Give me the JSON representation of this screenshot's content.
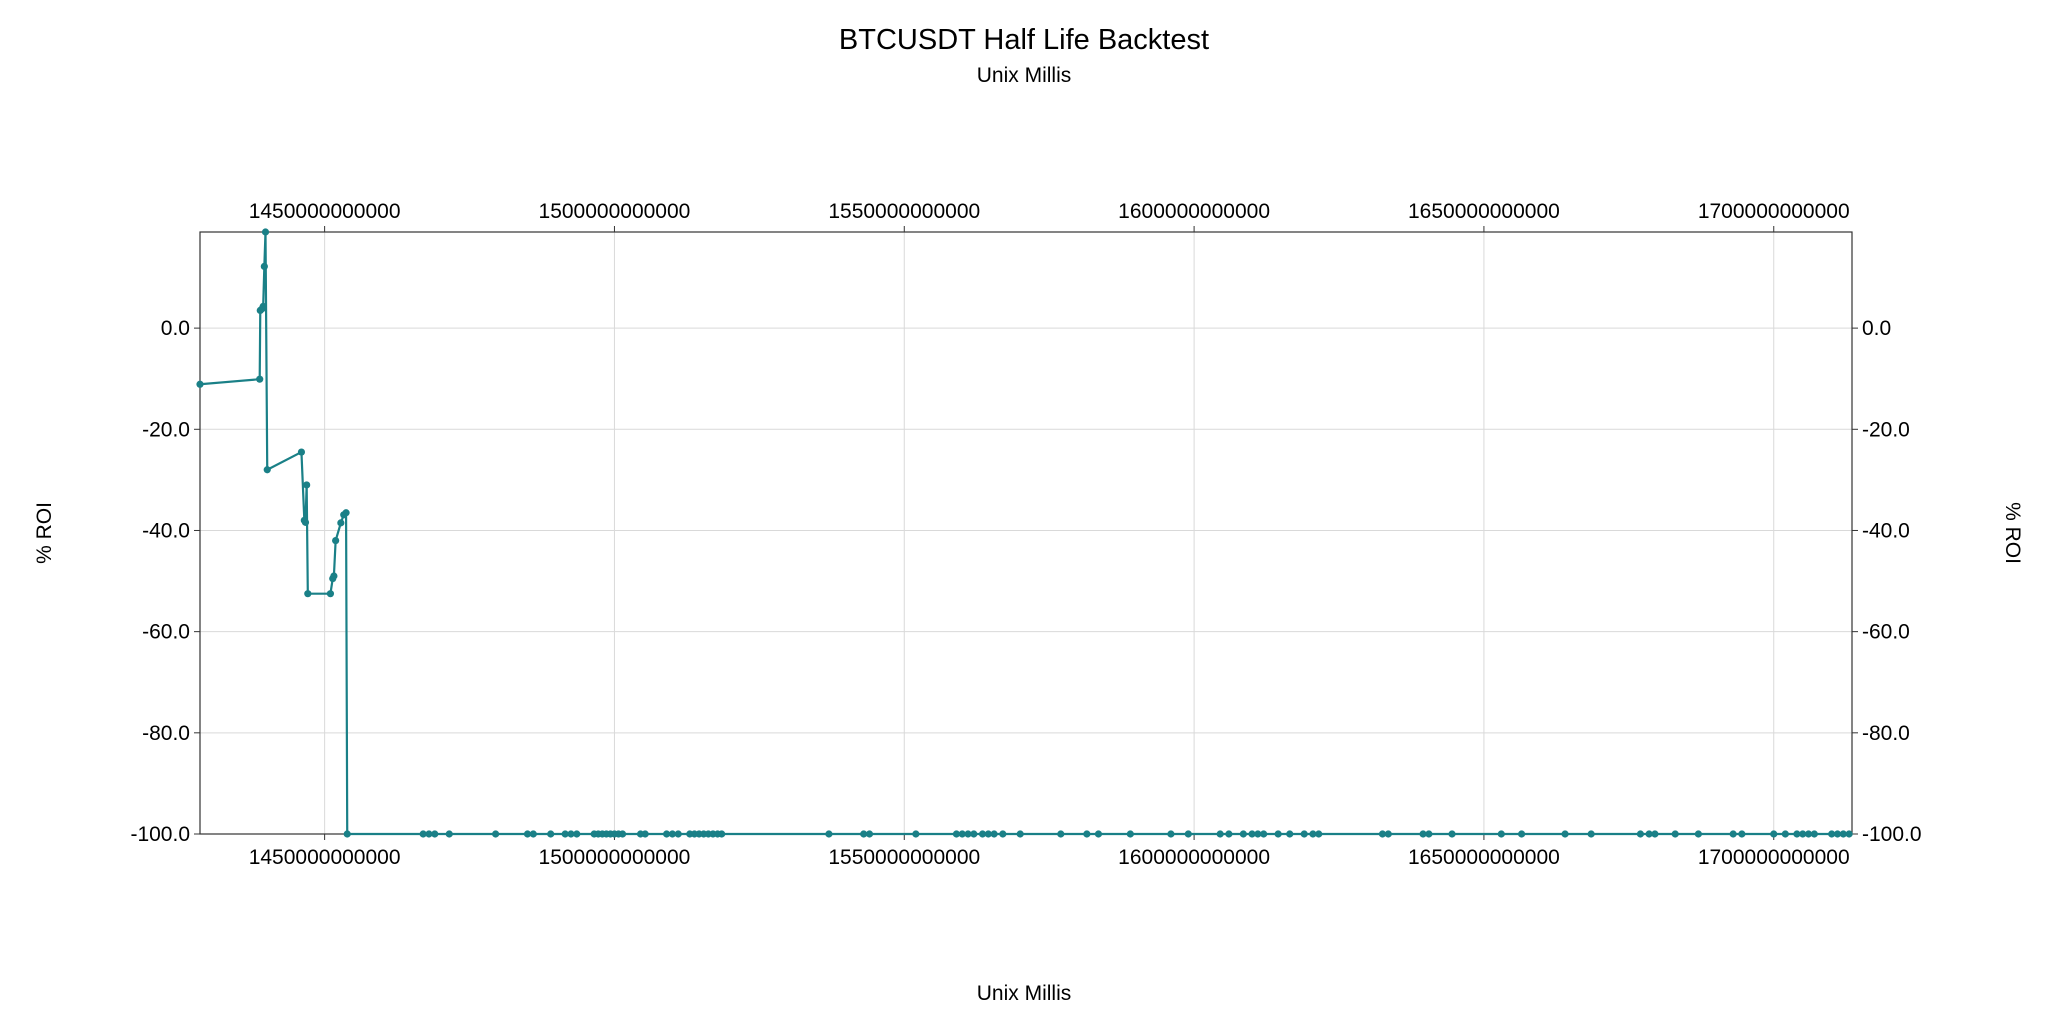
{
  "chart_data": {
    "type": "line",
    "title": "BTCUSDT Half Life Backtest",
    "subtitle": "Unix Millis",
    "xlabel": "Unix Millis",
    "ylabel": "% ROI",
    "xlim": [
      1428500000000,
      1713500000000
    ],
    "ylim": [
      -100,
      19
    ],
    "x_ticks": [
      1450000000000,
      1500000000000,
      1550000000000,
      1600000000000,
      1650000000000,
      1700000000000
    ],
    "x_tick_labels": [
      "1450000000000",
      "1500000000000",
      "1550000000000",
      "1600000000000",
      "1650000000000",
      "1700000000000"
    ],
    "y_ticks": [
      0,
      -20,
      -40,
      -60,
      -80,
      -100
    ],
    "y_tick_labels": [
      "0.0",
      "-20.0",
      "-40.0",
      "-60.0",
      "-80.0",
      "-100.0"
    ],
    "x_axis_positions": [
      "top",
      "bottom"
    ],
    "y_axis_positions": [
      "left",
      "right"
    ],
    "grid": true,
    "line_color": "#1a8087",
    "grid_color": "#d9d9d9",
    "series": [
      {
        "marker": "circle",
        "points": [
          [
            1428500000000,
            -11.1
          ],
          [
            1438800000000,
            -10.1
          ],
          [
            1438900000000,
            3.5
          ],
          [
            1439200000000,
            3.8
          ],
          [
            1439400000000,
            4.3
          ],
          [
            1439600000000,
            12.2
          ],
          [
            1439800000000,
            19.0
          ],
          [
            1440100000000,
            -28.0
          ],
          [
            1446000000000,
            -24.5
          ],
          [
            1446500000000,
            -38.0
          ],
          [
            1446700000000,
            -38.4
          ],
          [
            1446900000000,
            -31.0
          ],
          [
            1447100000000,
            -52.5
          ],
          [
            1451000000000,
            -52.5
          ],
          [
            1451400000000,
            -49.5
          ],
          [
            1451600000000,
            -49.0
          ],
          [
            1451900000000,
            -42.0
          ],
          [
            1452800000000,
            -38.5
          ],
          [
            1453300000000,
            -36.9
          ],
          [
            1453700000000,
            -36.5
          ],
          [
            1453900000000,
            -100.0
          ],
          [
            1467000000000,
            -100.0
          ],
          [
            1468000000000,
            -100.0
          ],
          [
            1469000000000,
            -100.0
          ],
          [
            1471500000000,
            -100.0
          ],
          [
            1479500000000,
            -100.0
          ],
          [
            1485000000000,
            -100.0
          ],
          [
            1486000000000,
            -100.0
          ],
          [
            1489000000000,
            -100.0
          ],
          [
            1491500000000,
            -100.0
          ],
          [
            1492500000000,
            -100.0
          ],
          [
            1493500000000,
            -100.0
          ],
          [
            1496500000000,
            -100.0
          ],
          [
            1497200000000,
            -100.0
          ],
          [
            1497900000000,
            -100.0
          ],
          [
            1498600000000,
            -100.0
          ],
          [
            1499300000000,
            -100.0
          ],
          [
            1500000000000,
            -100.0
          ],
          [
            1500700000000,
            -100.0
          ],
          [
            1501400000000,
            -100.0
          ],
          [
            1504500000000,
            -100.0
          ],
          [
            1505300000000,
            -100.0
          ],
          [
            1509000000000,
            -100.0
          ],
          [
            1510000000000,
            -100.0
          ],
          [
            1511000000000,
            -100.0
          ],
          [
            1513000000000,
            -100.0
          ],
          [
            1513800000000,
            -100.0
          ],
          [
            1514600000000,
            -100.0
          ],
          [
            1515400000000,
            -100.0
          ],
          [
            1516200000000,
            -100.0
          ],
          [
            1517000000000,
            -100.0
          ],
          [
            1517800000000,
            -100.0
          ],
          [
            1518500000000,
            -100.0
          ],
          [
            1537000000000,
            -100.0
          ],
          [
            1543000000000,
            -100.0
          ],
          [
            1544000000000,
            -100.0
          ],
          [
            1552000000000,
            -100.0
          ],
          [
            1559000000000,
            -100.0
          ],
          [
            1560000000000,
            -100.0
          ],
          [
            1561000000000,
            -100.0
          ],
          [
            1562000000000,
            -100.0
          ],
          [
            1563500000000,
            -100.0
          ],
          [
            1564500000000,
            -100.0
          ],
          [
            1565500000000,
            -100.0
          ],
          [
            1567000000000,
            -100.0
          ],
          [
            1570000000000,
            -100.0
          ],
          [
            1577000000000,
            -100.0
          ],
          [
            1581500000000,
            -100.0
          ],
          [
            1583500000000,
            -100.0
          ],
          [
            1589000000000,
            -100.0
          ],
          [
            1596000000000,
            -100.0
          ],
          [
            1599000000000,
            -100.0
          ],
          [
            1604500000000,
            -100.0
          ],
          [
            1606000000000,
            -100.0
          ],
          [
            1608500000000,
            -100.0
          ],
          [
            1610000000000,
            -100.0
          ],
          [
            1611000000000,
            -100.0
          ],
          [
            1612000000000,
            -100.0
          ],
          [
            1614500000000,
            -100.0
          ],
          [
            1616500000000,
            -100.0
          ],
          [
            1619000000000,
            -100.0
          ],
          [
            1620500000000,
            -100.0
          ],
          [
            1621500000000,
            -100.0
          ],
          [
            1632500000000,
            -100.0
          ],
          [
            1633500000000,
            -100.0
          ],
          [
            1639500000000,
            -100.0
          ],
          [
            1640500000000,
            -100.0
          ],
          [
            1644500000000,
            -100.0
          ],
          [
            1653000000000,
            -100.0
          ],
          [
            1656500000000,
            -100.0
          ],
          [
            1664000000000,
            -100.0
          ],
          [
            1668500000000,
            -100.0
          ],
          [
            1677000000000,
            -100.0
          ],
          [
            1678500000000,
            -100.0
          ],
          [
            1679500000000,
            -100.0
          ],
          [
            1683000000000,
            -100.0
          ],
          [
            1687000000000,
            -100.0
          ],
          [
            1693000000000,
            -100.0
          ],
          [
            1694500000000,
            -100.0
          ],
          [
            1700000000000,
            -100.0
          ],
          [
            1702000000000,
            -100.0
          ],
          [
            1704000000000,
            -100.0
          ],
          [
            1705000000000,
            -100.0
          ],
          [
            1706000000000,
            -100.0
          ],
          [
            1707000000000,
            -100.0
          ],
          [
            1710000000000,
            -100.0
          ],
          [
            1711000000000,
            -100.0
          ],
          [
            1712000000000,
            -100.0
          ],
          [
            1713000000000,
            -100.0
          ]
        ]
      }
    ]
  }
}
